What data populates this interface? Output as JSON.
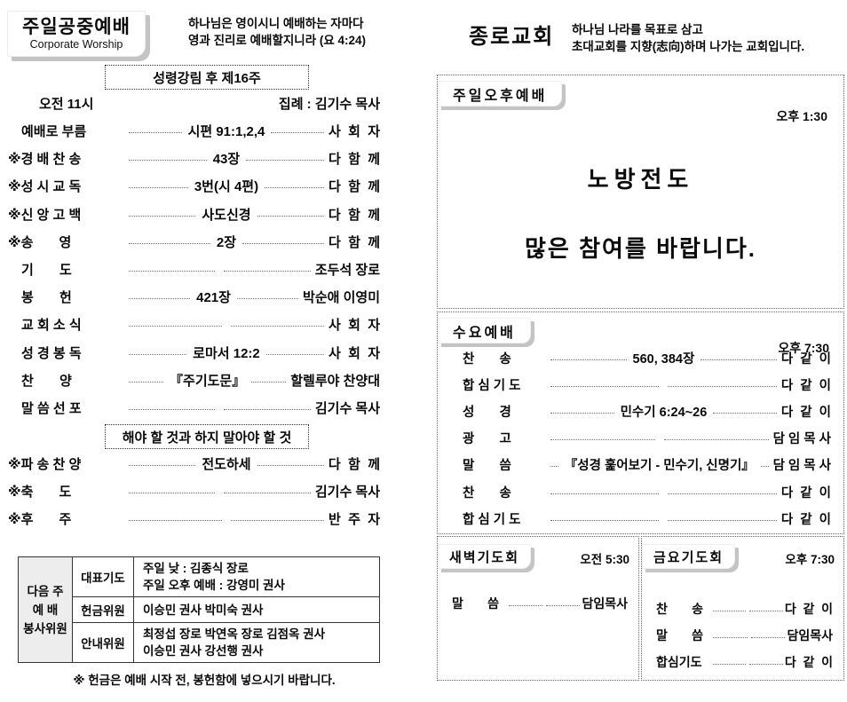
{
  "left": {
    "header": {
      "title": "주일공중예배",
      "subtitle": "Corporate Worship"
    },
    "verse": {
      "line1": "하나님은 영이시니 예배하는 자마다",
      "line2": "영과 진리로 예배할지니라 (요 4:24)"
    },
    "week_banner": "성령강림 후 제16주",
    "service_time": "오전 11시",
    "presider": "집례 : 김기수 목사",
    "order_rows": [
      {
        "label": "예배로 부름",
        "center": "시편 91:1,2,4",
        "right": "사  회  자"
      },
      {
        "label": "※경 배 찬 송",
        "center": "43장",
        "right": "다  함  께"
      },
      {
        "label": "※성 시 교 독",
        "center": "3번(시 4편)",
        "right": "다  함  께"
      },
      {
        "label": "※신 앙 고 백",
        "center": "사도신경",
        "right": "다  함  께"
      },
      {
        "label": "※송       영",
        "center": "2장",
        "right": "다  함  께"
      },
      {
        "label": "기       도",
        "center": "",
        "right": "조두석 장로"
      },
      {
        "label": "봉       헌",
        "center": "421장",
        "right": "박순애 이영미"
      },
      {
        "label": "교 회 소 식",
        "center": "",
        "right": "사  회  자"
      },
      {
        "label": "성 경 봉 독",
        "center": "로마서 12:2",
        "right": "사  회  자"
      },
      {
        "label": "찬       양",
        "center": "『주기도문』",
        "right": "할렐루야 찬양대"
      },
      {
        "label": "말 씀 선 포",
        "center": "",
        "right": "김기수 목사"
      }
    ],
    "sermon_banner": "해야 할 것과 하지 말아야 할 것",
    "closing_rows": [
      {
        "label": "※파 송 찬 양",
        "center": "전도하세",
        "right": "다  함  께"
      },
      {
        "label": "※축       도",
        "center": "",
        "right": "김기수 목사"
      },
      {
        "label": "※후       주",
        "center": "",
        "right": "반  주  자"
      }
    ],
    "duty_table": {
      "row_header": "다음 주\n예 배\n봉사위원",
      "rows": [
        {
          "cat": "대표기도",
          "val": "주일 낮 : 김종식 장로\n주일 오후 예배 : 강영미 권사"
        },
        {
          "cat": "헌금위원",
          "val": "이승민 권사 박미숙 권사"
        },
        {
          "cat": "안내위원",
          "val": "최정섭 장로 박연옥 장로 김점옥 권사\n이승민 권사 강선행 권사"
        }
      ]
    },
    "footnote": "※ 헌금은 예배 시작 전, 봉헌함에 넣으시기 바랍니다."
  },
  "right": {
    "church_name": "종로교회",
    "motto": {
      "line1": "하나님 나라를 목표로 삼고",
      "line2": "초대교회를 지향(志向)하며 나가는 교회입니다."
    },
    "afternoon": {
      "label": "주일오후예배",
      "time": "오후 1:30",
      "line1": "노방전도",
      "line2": "많은 참여를 바랍니다."
    },
    "wednesday": {
      "label": "수요예배",
      "time": "오후 7:30",
      "rows": [
        {
          "label": "찬       송",
          "center": "560, 384장",
          "right": "다  같  이"
        },
        {
          "label": "합 심 기 도",
          "center": "",
          "right": "다  같  이"
        },
        {
          "label": "성       경",
          "center": "민수기 6:24~26",
          "right": "다  같  이"
        },
        {
          "label": "광       고",
          "center": "",
          "right": "담 임 목 사"
        },
        {
          "label": "말       씀",
          "center": "『성경 훑어보기 - 민수기, 신명기』",
          "right": "담 임 목 사"
        },
        {
          "label": "찬       송",
          "center": "",
          "right": "다  같  이"
        },
        {
          "label": "합 심 기 도",
          "center": "",
          "right": "다  같  이"
        }
      ]
    },
    "dawn": {
      "label": "새벽기도회",
      "time": "오전 5:30",
      "rows": [
        {
          "label": "말       씀",
          "center": "",
          "right": "담임목사"
        }
      ]
    },
    "friday": {
      "label": "금요기도회",
      "time": "오후 7:30",
      "rows": [
        {
          "label": "찬       송",
          "center": "",
          "right": "다  같  이"
        },
        {
          "label": "말       씀",
          "center": "",
          "right": "담임목사"
        },
        {
          "label": "합심기도",
          "center": "",
          "right": "다  같  이"
        }
      ]
    }
  }
}
